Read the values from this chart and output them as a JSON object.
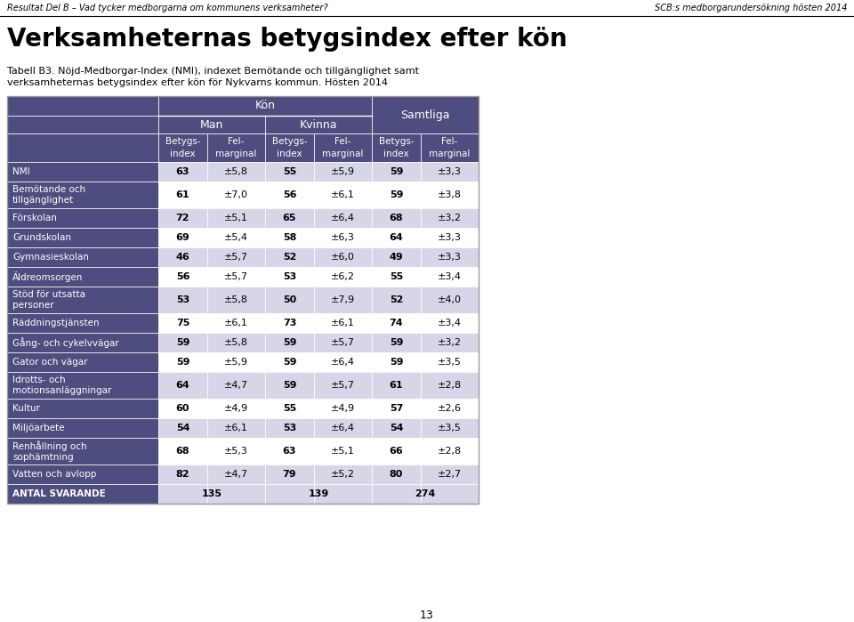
{
  "header_top_left": "Resultat Del B – Vad tycker medborgarna om kommunens verksamheter?",
  "header_top_right": "SCB:s medborgarundersökning hösten 2014",
  "main_title": "Verksamheternas betygsindex efter kön",
  "subtitle_line1": "Tabell B3. Nöjd-Medborgar-Index (NMI), indexet Bemötande och tillgänglighet samt",
  "subtitle_line2": "verksamheternas betygsindex efter kön för Nykvarns kommun. Hösten 2014",
  "col_header_kon": "Kön",
  "col_header_man": "Man",
  "col_header_kvinna": "Kvinna",
  "col_header_samtliga": "Samtliga",
  "rows": [
    {
      "label": "NMI",
      "man_b": "63",
      "man_f": "±5,8",
      "kvinna_b": "55",
      "kvinna_f": "±5,9",
      "samt_b": "59",
      "samt_f": "±3,3",
      "bold_data": true
    },
    {
      "label": "Bemötande och\ntillgänglighet",
      "man_b": "61",
      "man_f": "±7,0",
      "kvinna_b": "56",
      "kvinna_f": "±6,1",
      "samt_b": "59",
      "samt_f": "±3,8",
      "bold_data": false
    },
    {
      "label": "Förskolan",
      "man_b": "72",
      "man_f": "±5,1",
      "kvinna_b": "65",
      "kvinna_f": "±6,4",
      "samt_b": "68",
      "samt_f": "±3,2",
      "bold_data": false
    },
    {
      "label": "Grundskolan",
      "man_b": "69",
      "man_f": "±5,4",
      "kvinna_b": "58",
      "kvinna_f": "±6,3",
      "samt_b": "64",
      "samt_f": "±3,3",
      "bold_data": false
    },
    {
      "label": "Gymnasieskolan",
      "man_b": "46",
      "man_f": "±5,7",
      "kvinna_b": "52",
      "kvinna_f": "±6,0",
      "samt_b": "49",
      "samt_f": "±3,3",
      "bold_data": false
    },
    {
      "label": "Äldreomsorgen",
      "man_b": "56",
      "man_f": "±5,7",
      "kvinna_b": "53",
      "kvinna_f": "±6,2",
      "samt_b": "55",
      "samt_f": "±3,4",
      "bold_data": false
    },
    {
      "label": "Stöd för utsatta\npersoner",
      "man_b": "53",
      "man_f": "±5,8",
      "kvinna_b": "50",
      "kvinna_f": "±7,9",
      "samt_b": "52",
      "samt_f": "±4,0",
      "bold_data": false
    },
    {
      "label": "Räddningstjänsten",
      "man_b": "75",
      "man_f": "±6,1",
      "kvinna_b": "73",
      "kvinna_f": "±6,1",
      "samt_b": "74",
      "samt_f": "±3,4",
      "bold_data": false
    },
    {
      "label": "Gång- och cykelvvägar",
      "man_b": "59",
      "man_f": "±5,8",
      "kvinna_b": "59",
      "kvinna_f": "±5,7",
      "samt_b": "59",
      "samt_f": "±3,2",
      "bold_data": false
    },
    {
      "label": "Gator och vägar",
      "man_b": "59",
      "man_f": "±5,9",
      "kvinna_b": "59",
      "kvinna_f": "±6,4",
      "samt_b": "59",
      "samt_f": "±3,5",
      "bold_data": false
    },
    {
      "label": "Idrotts- och\nmotionsanläggningar",
      "man_b": "64",
      "man_f": "±4,7",
      "kvinna_b": "59",
      "kvinna_f": "±5,7",
      "samt_b": "61",
      "samt_f": "±2,8",
      "bold_data": false
    },
    {
      "label": "Kultur",
      "man_b": "60",
      "man_f": "±4,9",
      "kvinna_b": "55",
      "kvinna_f": "±4,9",
      "samt_b": "57",
      "samt_f": "±2,6",
      "bold_data": false
    },
    {
      "label": "Miljöarbete",
      "man_b": "54",
      "man_f": "±6,1",
      "kvinna_b": "53",
      "kvinna_f": "±6,4",
      "samt_b": "54",
      "samt_f": "±3,5",
      "bold_data": false
    },
    {
      "label": "Renhållning och\nsophämtning",
      "man_b": "68",
      "man_f": "±5,3",
      "kvinna_b": "63",
      "kvinna_f": "±5,1",
      "samt_b": "66",
      "samt_f": "±2,8",
      "bold_data": false
    },
    {
      "label": "Vatten och avlopp",
      "man_b": "82",
      "man_f": "±4,7",
      "kvinna_b": "79",
      "kvinna_f": "±5,2",
      "samt_b": "80",
      "samt_f": "±2,7",
      "bold_data": false
    },
    {
      "label": "ANTAL SVARANDE",
      "man_b": "135",
      "man_f": "",
      "kvinna_b": "139",
      "kvinna_f": "",
      "samt_b": "274",
      "samt_f": "",
      "bold_data": true,
      "footer": true
    }
  ],
  "header_bg": "#4d4d7f",
  "header_text_color": "#ffffff",
  "subheader_bg": "#6666aa",
  "row_bg_odd": "#d6d6e8",
  "row_bg_even": "#ffffff",
  "footer_bg": "#4d4d7f",
  "footer_text_color": "#ffffff",
  "footer_data_bg": "#d6d6e8",
  "page_number": "13"
}
